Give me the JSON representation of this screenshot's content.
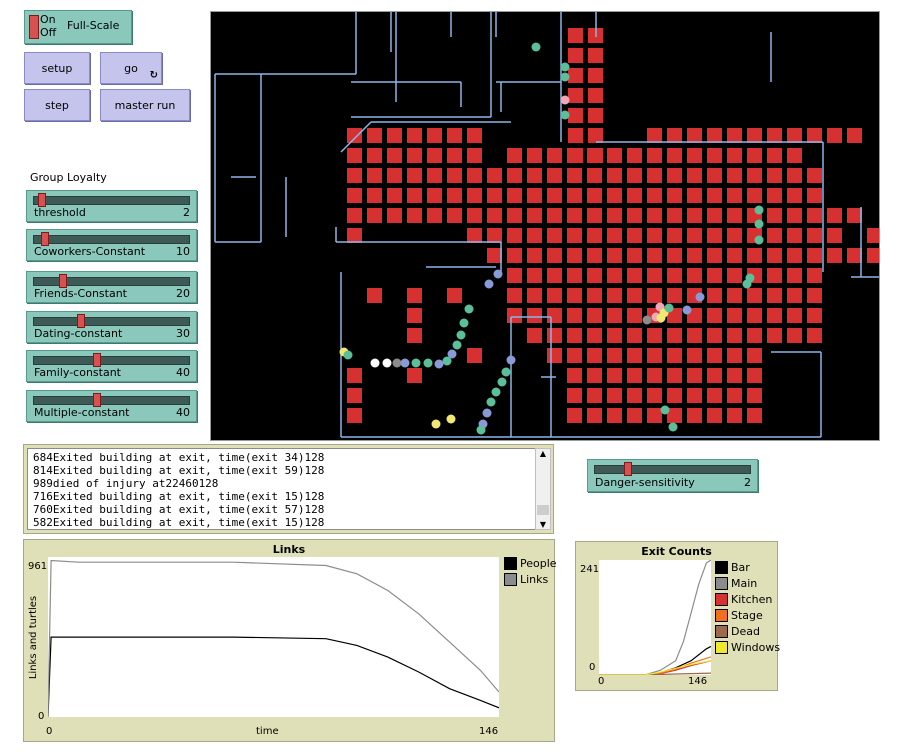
{
  "toggle": {
    "on_label": "On",
    "off_label": "Off",
    "name": "Full-Scale"
  },
  "buttons": {
    "setup": "setup",
    "go": "go",
    "go_icon": "forever-loop-icon",
    "step": "step",
    "master_run": "master run"
  },
  "group_loyalty_label": "Group Loyalty",
  "sliders": [
    {
      "name": "threshold",
      "value": "2",
      "fraction": 0.03
    },
    {
      "name": "Coworkers-Constant",
      "value": "10",
      "fraction": 0.05
    },
    {
      "name": "Friends-Constant",
      "value": "20",
      "fraction": 0.17
    },
    {
      "name": "Dating-constant",
      "value": "30",
      "fraction": 0.29
    },
    {
      "name": "Family-constant",
      "value": "40",
      "fraction": 0.4
    },
    {
      "name": "Multiple-constant",
      "value": "40",
      "fraction": 0.4
    }
  ],
  "danger_slider": {
    "name": "Danger-sensitivity",
    "value": "2",
    "fraction": 0.2
  },
  "output_lines": [
    "684Exited building at exit, time(exit 34)128",
    "814Exited building at exit, time(exit 59)128",
    "989died of injury at22460128",
    "716Exited building at exit, time(exit 15)128",
    "760Exited building at exit, time(exit 57)128",
    "582Exited building at exit, time(exit 15)128"
  ],
  "colors": {
    "room_square": "#d73030",
    "wall": "#8db4e8",
    "slider_bg": "#8ac8bc",
    "button_bg": "#c4c4ec",
    "plot_bg": "#dfdfb8"
  },
  "plot_links": {
    "title": "Links",
    "y_max_label": "961",
    "y_min_label": "0",
    "x_min_label": "0",
    "x_max_label": "146",
    "xlabel": "time",
    "ylabel": "Links and turtles",
    "legend": [
      {
        "name": "People",
        "color": "#000000"
      },
      {
        "name": "Links",
        "color": "#8c8c8c"
      }
    ]
  },
  "plot_exits": {
    "title": "Exit Counts",
    "y_max_label": "241",
    "y_min_label": "0",
    "x_min_label": "0",
    "x_max_label": "146",
    "legend": [
      {
        "name": "Bar",
        "color": "#000000"
      },
      {
        "name": "Main",
        "color": "#8c8c8c"
      },
      {
        "name": "Kitchen",
        "color": "#d73030"
      },
      {
        "name": "Stage",
        "color": "#f07020"
      },
      {
        "name": "Dead",
        "color": "#9c6a4a"
      },
      {
        "name": "Windows",
        "color": "#f0e830"
      }
    ]
  },
  "chart_data": [
    {
      "type": "line",
      "title": "Links",
      "xlabel": "time",
      "ylabel": "Links and turtles",
      "xlim": [
        0,
        146
      ],
      "ylim": [
        0,
        961
      ],
      "series": [
        {
          "name": "People",
          "color": "#000000",
          "x": [
            0,
            1,
            10,
            30,
            60,
            90,
            100,
            110,
            120,
            130,
            140,
            146
          ],
          "y": [
            0,
            480,
            480,
            480,
            480,
            470,
            430,
            360,
            270,
            170,
            100,
            55
          ]
        },
        {
          "name": "Links",
          "color": "#8c8c8c",
          "x": [
            0,
            1,
            10,
            30,
            60,
            90,
            100,
            110,
            120,
            130,
            140,
            146
          ],
          "y": [
            0,
            940,
            930,
            930,
            930,
            910,
            860,
            760,
            620,
            450,
            280,
            150
          ]
        }
      ]
    },
    {
      "type": "line",
      "title": "Exit Counts",
      "xlim": [
        0,
        146
      ],
      "ylim": [
        0,
        241
      ],
      "series": [
        {
          "name": "Bar",
          "color": "#000000",
          "x": [
            0,
            60,
            80,
            100,
            120,
            140,
            146
          ],
          "y": [
            0,
            0,
            5,
            15,
            30,
            55,
            60
          ]
        },
        {
          "name": "Main",
          "color": "#8c8c8c",
          "x": [
            0,
            60,
            80,
            100,
            110,
            120,
            130,
            140,
            146
          ],
          "y": [
            0,
            0,
            10,
            30,
            70,
            130,
            190,
            235,
            241
          ]
        },
        {
          "name": "Kitchen",
          "color": "#d73030",
          "x": [
            0,
            60,
            80,
            100,
            120,
            146
          ],
          "y": [
            0,
            0,
            3,
            10,
            20,
            30
          ]
        },
        {
          "name": "Stage",
          "color": "#f07020",
          "x": [
            0,
            60,
            80,
            100,
            120,
            146
          ],
          "y": [
            0,
            0,
            4,
            12,
            25,
            38
          ]
        },
        {
          "name": "Dead",
          "color": "#9c6a4a",
          "x": [
            0,
            60,
            100,
            146
          ],
          "y": [
            0,
            0,
            2,
            4
          ]
        },
        {
          "name": "Windows",
          "color": "#f0e830",
          "x": [
            0,
            60,
            80,
            100,
            120,
            146
          ],
          "y": [
            0,
            0,
            6,
            14,
            22,
            30
          ]
        }
      ]
    }
  ]
}
